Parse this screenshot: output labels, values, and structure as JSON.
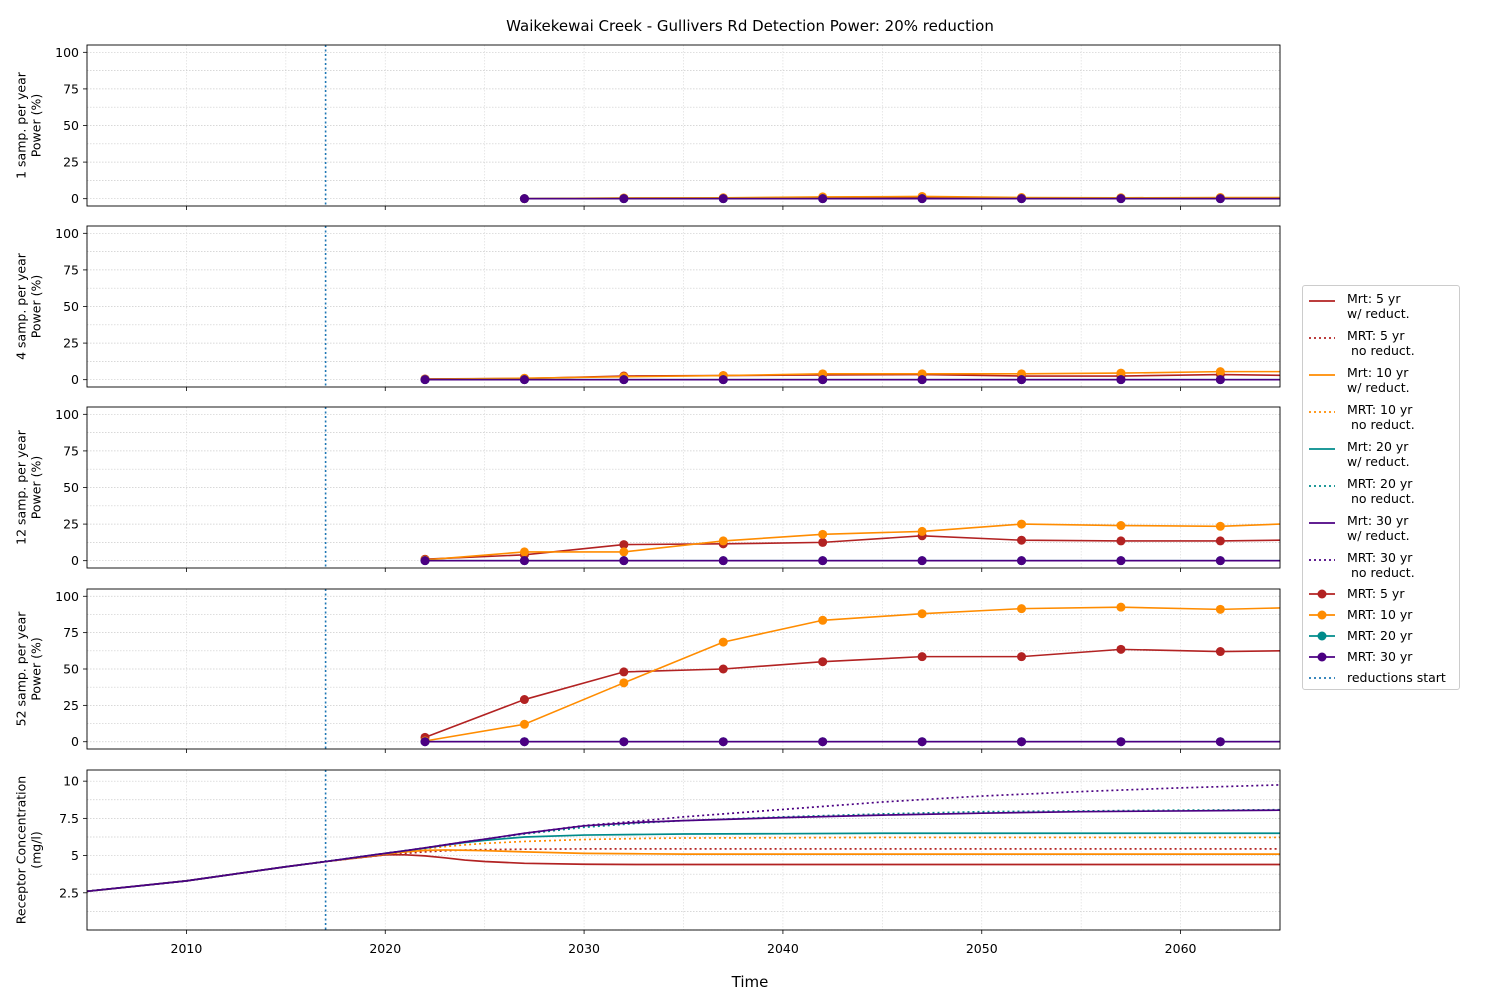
{
  "chart_data": {
    "type": "line",
    "title": "Waikekewai Creek - Gullivers Rd  Detection Power: 20% reduction",
    "xlabel": "Time",
    "xlim": [
      2005,
      2065
    ],
    "x_ticks": [
      2010,
      2020,
      2030,
      2040,
      2050,
      2060
    ],
    "reductions_start": 2017,
    "grid": true,
    "legend_position": "right",
    "colors": {
      "mrt5": "#b22222",
      "mrt10": "#ff8c00",
      "mrt20": "#008b8b",
      "mrt30": "#4b0082",
      "reductions": "#1f77b4"
    },
    "power_panels": [
      {
        "ylabel": "1 samp. per year\nPower (%)",
        "ylim": [
          -5,
          105
        ],
        "y_ticks": [
          0,
          25,
          50,
          75,
          100
        ],
        "x": [
          2027,
          2032,
          2037,
          2042,
          2047,
          2052,
          2057,
          2062
        ],
        "series": [
          {
            "name": "MRT: 5 yr",
            "key": "mrt5",
            "values": [
              0,
              0.3,
              0.4,
              0.5,
              0.6,
              0.4,
              0.4,
              0.5
            ],
            "end": 0.5
          },
          {
            "name": "MRT: 10 yr",
            "key": "mrt10",
            "values": [
              0,
              0.5,
              0.6,
              1.2,
              1.5,
              0.8,
              0.6,
              0.8
            ],
            "end": 0.8
          },
          {
            "name": "MRT: 20 yr",
            "key": "mrt20",
            "values": [
              0,
              0,
              0,
              0,
              0,
              0,
              0,
              0
            ],
            "end": 0
          },
          {
            "name": "MRT: 30 yr",
            "key": "mrt30",
            "values": [
              0,
              0,
              0,
              0,
              0,
              0,
              0,
              0
            ],
            "end": 0
          }
        ]
      },
      {
        "ylabel": "4 samp. per year\nPower (%)",
        "ylim": [
          -5,
          105
        ],
        "y_ticks": [
          0,
          25,
          50,
          75,
          100
        ],
        "x": [
          2022,
          2027,
          2032,
          2037,
          2042,
          2047,
          2052,
          2057,
          2062
        ],
        "series": [
          {
            "name": "MRT: 5 yr",
            "key": "mrt5",
            "values": [
              0.5,
              0.8,
              2.5,
              2.8,
              3.2,
              3.5,
              2.5,
              2.5,
              3.5
            ],
            "end": 3.0
          },
          {
            "name": "MRT: 10 yr",
            "key": "mrt10",
            "values": [
              0.3,
              1.0,
              2.0,
              2.8,
              4.0,
              4.0,
              4.0,
              4.5,
              5.5
            ],
            "end": 5.5
          },
          {
            "name": "MRT: 20 yr",
            "key": "mrt20",
            "values": [
              0,
              0,
              0,
              0,
              0,
              0,
              0,
              0,
              0
            ],
            "end": 0
          },
          {
            "name": "MRT: 30 yr",
            "key": "mrt30",
            "values": [
              0,
              0,
              0,
              0,
              0,
              0,
              0,
              0,
              0
            ],
            "end": 0
          }
        ]
      },
      {
        "ylabel": "12 samp. per year\nPower (%)",
        "ylim": [
          -5,
          105
        ],
        "y_ticks": [
          0,
          25,
          50,
          75,
          100
        ],
        "x": [
          2022,
          2027,
          2032,
          2037,
          2042,
          2047,
          2052,
          2057,
          2062
        ],
        "series": [
          {
            "name": "MRT: 5 yr",
            "key": "mrt5",
            "values": [
              1.0,
              4.0,
              11.0,
              11.5,
              12.5,
              17.0,
              14.0,
              13.5,
              13.5
            ],
            "end": 14.0
          },
          {
            "name": "MRT: 10 yr",
            "key": "mrt10",
            "values": [
              0.5,
              6.0,
              6.0,
              13.5,
              18.0,
              20.0,
              25.0,
              24.0,
              23.5
            ],
            "end": 25.0
          },
          {
            "name": "MRT: 20 yr",
            "key": "mrt20",
            "values": [
              0,
              0,
              0,
              0,
              0,
              0,
              0,
              0,
              0
            ],
            "end": 0
          },
          {
            "name": "MRT: 30 yr",
            "key": "mrt30",
            "values": [
              0,
              0,
              0,
              0,
              0,
              0,
              0,
              0,
              0
            ],
            "end": 0
          }
        ]
      },
      {
        "ylabel": "52 samp. per year\nPower (%)",
        "ylim": [
          -5,
          105
        ],
        "y_ticks": [
          0,
          25,
          50,
          75,
          100
        ],
        "x": [
          2022,
          2027,
          2032,
          2037,
          2042,
          2047,
          2052,
          2057,
          2062
        ],
        "series": [
          {
            "name": "MRT: 5 yr",
            "key": "mrt5",
            "values": [
              3.0,
              29.0,
              48.0,
              50.0,
              55.0,
              58.5,
              58.5,
              63.5,
              62.0
            ],
            "end": 62.5
          },
          {
            "name": "MRT: 10 yr",
            "key": "mrt10",
            "values": [
              0.5,
              12.0,
              40.5,
              68.5,
              83.5,
              88.0,
              91.5,
              92.5,
              91.0
            ],
            "end": 92.0
          },
          {
            "name": "MRT: 20 yr",
            "key": "mrt20",
            "values": [
              0,
              0,
              0,
              0,
              0,
              0,
              0,
              0,
              0
            ],
            "end": 0
          },
          {
            "name": "MRT: 30 yr",
            "key": "mrt30",
            "values": [
              0,
              0,
              0,
              0,
              0,
              0,
              0,
              0,
              0
            ],
            "end": 0
          }
        ]
      }
    ],
    "concentration_panel": {
      "ylabel": "Receptor Concentration\n(mg/l)",
      "ylim": [
        0,
        10.75
      ],
      "y_ticks": [
        2.5,
        5.0,
        7.5,
        10.0
      ],
      "x": [
        2005,
        2010,
        2015,
        2017,
        2020,
        2021,
        2022,
        2023,
        2024,
        2025,
        2027,
        2030,
        2033,
        2035,
        2040,
        2045,
        2050,
        2055,
        2060,
        2065
      ],
      "series": [
        {
          "name": "Mrt: 5 yr\nw/ reduct.",
          "key": "mrt5",
          "style": "solid",
          "values": [
            2.6,
            3.3,
            4.25,
            4.6,
            5.05,
            5.05,
            4.98,
            4.85,
            4.7,
            4.6,
            4.48,
            4.42,
            4.4,
            4.4,
            4.4,
            4.4,
            4.4,
            4.4,
            4.4,
            4.4
          ]
        },
        {
          "name": "MRT: 5 yr\n no reduct.",
          "key": "mrt5",
          "style": "dotted",
          "values": [
            2.6,
            3.3,
            4.25,
            4.6,
            5.05,
            5.15,
            5.25,
            5.32,
            5.37,
            5.4,
            5.43,
            5.45,
            5.45,
            5.45,
            5.45,
            5.45,
            5.45,
            5.45,
            5.45,
            5.45
          ]
        },
        {
          "name": "Mrt: 10 yr\nw/ reduct.",
          "key": "mrt10",
          "style": "solid",
          "values": [
            2.6,
            3.3,
            4.25,
            4.6,
            5.1,
            5.25,
            5.35,
            5.38,
            5.36,
            5.33,
            5.25,
            5.15,
            5.12,
            5.1,
            5.1,
            5.1,
            5.1,
            5.1,
            5.1,
            5.1
          ]
        },
        {
          "name": "MRT: 10 yr\n no reduct.",
          "key": "mrt10",
          "style": "dotted",
          "values": [
            2.6,
            3.3,
            4.25,
            4.6,
            5.1,
            5.28,
            5.45,
            5.6,
            5.72,
            5.82,
            5.95,
            6.08,
            6.15,
            6.18,
            6.2,
            6.22,
            6.22,
            6.22,
            6.22,
            6.22
          ]
        },
        {
          "name": "Mrt: 20 yr\nw/ reduct.",
          "key": "mrt20",
          "style": "solid",
          "values": [
            2.6,
            3.3,
            4.25,
            4.6,
            5.15,
            5.33,
            5.5,
            5.7,
            5.88,
            6.02,
            6.25,
            6.38,
            6.42,
            6.45,
            6.47,
            6.5,
            6.5,
            6.5,
            6.5,
            6.5
          ]
        },
        {
          "name": "MRT: 20 yr\n no reduct.",
          "key": "mrt20",
          "style": "dotted",
          "values": [
            2.6,
            3.3,
            4.25,
            4.6,
            5.15,
            5.33,
            5.52,
            5.72,
            5.92,
            6.1,
            6.45,
            6.9,
            7.2,
            7.35,
            7.6,
            7.8,
            7.95,
            8.0,
            8.05,
            8.08
          ]
        },
        {
          "name": "Mrt: 30 yr\nw/ reduct.",
          "key": "mrt30",
          "style": "solid",
          "values": [
            2.6,
            3.3,
            4.25,
            4.6,
            5.15,
            5.33,
            5.52,
            5.72,
            5.92,
            6.1,
            6.5,
            7.0,
            7.25,
            7.35,
            7.55,
            7.72,
            7.85,
            7.95,
            8.0,
            8.05
          ]
        },
        {
          "name": "MRT: 30 yr\n no reduct.",
          "key": "mrt30",
          "style": "dotted",
          "values": [
            2.6,
            3.3,
            4.25,
            4.6,
            5.15,
            5.33,
            5.52,
            5.72,
            5.92,
            6.1,
            6.5,
            7.02,
            7.35,
            7.6,
            8.1,
            8.6,
            9.0,
            9.3,
            9.55,
            9.75
          ]
        }
      ]
    },
    "legend": [
      {
        "label": "Mrt: 5 yr\nw/ reduct.",
        "key": "mrt5",
        "style": "solid"
      },
      {
        "label": "MRT: 5 yr\n no reduct.",
        "key": "mrt5",
        "style": "dotted"
      },
      {
        "label": "Mrt: 10 yr\nw/ reduct.",
        "key": "mrt10",
        "style": "solid"
      },
      {
        "label": "MRT: 10 yr\n no reduct.",
        "key": "mrt10",
        "style": "dotted"
      },
      {
        "label": "Mrt: 20 yr\nw/ reduct.",
        "key": "mrt20",
        "style": "solid"
      },
      {
        "label": "MRT: 20 yr\n no reduct.",
        "key": "mrt20",
        "style": "dotted"
      },
      {
        "label": "Mrt: 30 yr\nw/ reduct.",
        "key": "mrt30",
        "style": "solid"
      },
      {
        "label": "MRT: 30 yr\n no reduct.",
        "key": "mrt30",
        "style": "dotted"
      },
      {
        "label": "MRT: 5 yr",
        "key": "mrt5",
        "style": "marker"
      },
      {
        "label": "MRT: 10 yr",
        "key": "mrt10",
        "style": "marker"
      },
      {
        "label": "MRT: 20 yr",
        "key": "mrt20",
        "style": "marker"
      },
      {
        "label": "MRT: 30 yr",
        "key": "mrt30",
        "style": "marker"
      },
      {
        "label": "reductions start",
        "key": "reductions",
        "style": "dotted"
      }
    ]
  }
}
